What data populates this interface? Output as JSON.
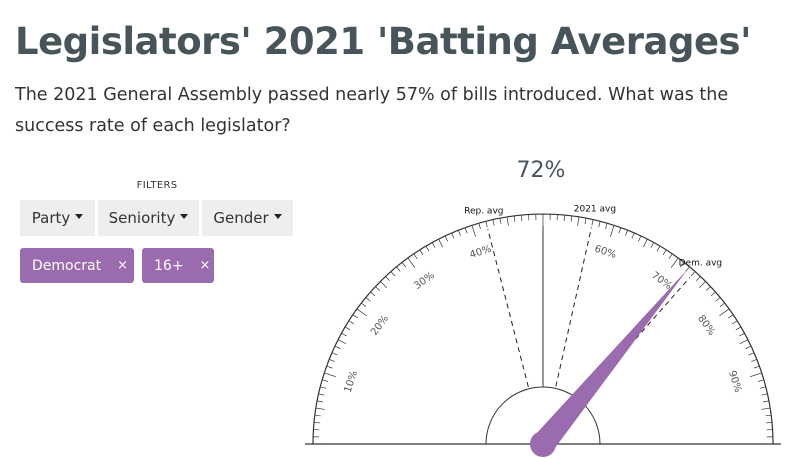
{
  "header": {
    "title": "Legislators' 2021 'Batting Averages'",
    "subtitle": "The 2021 General Assembly passed nearly 57% of bills introduced. What was the success rate of each legislator?"
  },
  "filters": {
    "label": "FILTERS",
    "dropdowns": [
      {
        "label": "Party"
      },
      {
        "label": "Seniority"
      },
      {
        "label": "Gender"
      }
    ],
    "active_chips": [
      {
        "label": "Democrat",
        "remove": "×"
      },
      {
        "label": "16+",
        "remove": "×"
      }
    ]
  },
  "gauge": {
    "value_text": "72%",
    "value": 72,
    "min": 0,
    "max": 100,
    "tick_labels": [
      "10%",
      "20%",
      "30%",
      "40%",
      "60%",
      "70%",
      "80%",
      "90%"
    ],
    "markers": [
      {
        "label": "Rep. avg",
        "value": 42
      },
      {
        "label": "2021 avg",
        "value": 57
      },
      {
        "label": "Dem. avg",
        "value": 73
      }
    ],
    "needle_color": "#9b6bb0"
  }
}
